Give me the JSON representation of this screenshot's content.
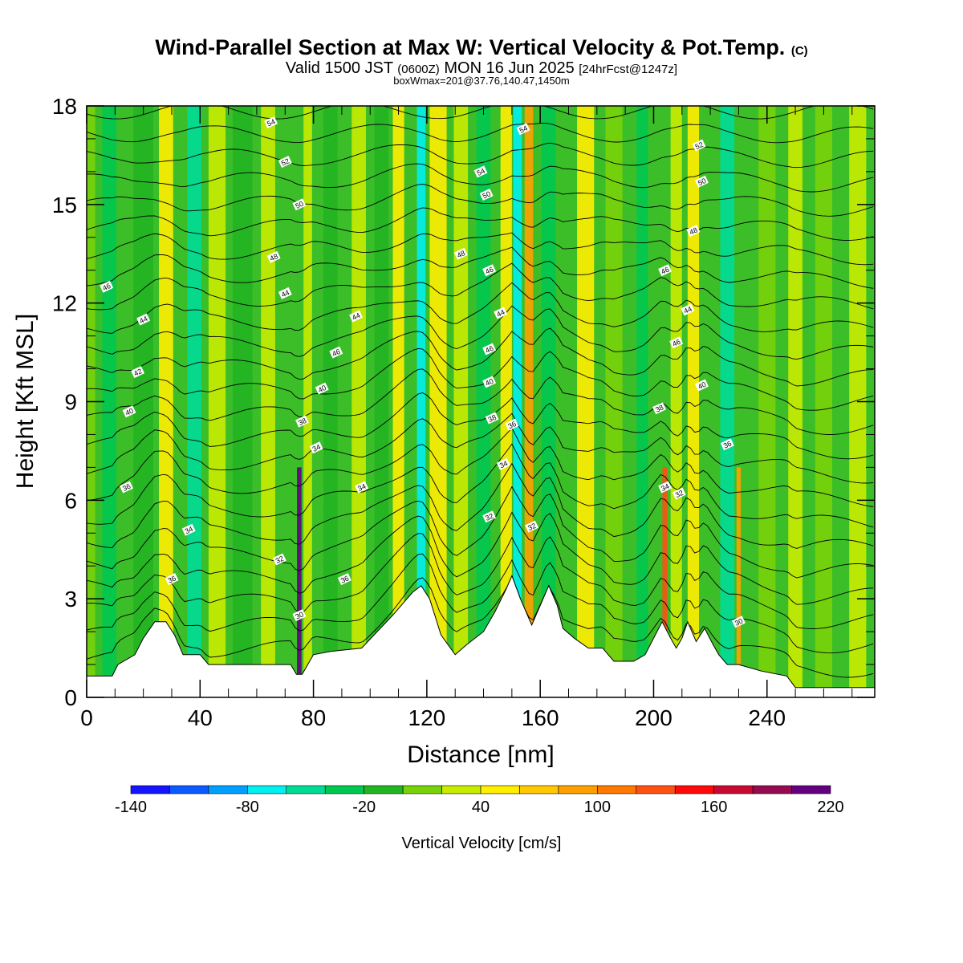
{
  "header": {
    "title": "Wind-Parallel Section at Max W: Vertical Velocity & Pot.Temp.",
    "copyright": "(C)",
    "subtitle_a": "Valid 1500 JST",
    "subtitle_b": "(0600Z)",
    "subtitle_c": "MON 16 Jun 2025",
    "subtitle_d": "[24hrFcst@1247z]",
    "box_info": "boxWmax=201@37.76,140.47,1450m"
  },
  "chart_data": {
    "type": "heatmap",
    "xlabel": "Distance [nm]",
    "ylabel": "Height [Kft MSL]",
    "xlim": [
      0,
      278
    ],
    "ylim": [
      0,
      18
    ],
    "x_ticks": [
      "0",
      "40",
      "80",
      "120",
      "160",
      "200",
      "240"
    ],
    "x_tick_values": [
      0,
      40,
      80,
      120,
      160,
      200,
      240
    ],
    "y_ticks": [
      "0",
      "3",
      "6",
      "9",
      "12",
      "15",
      "18"
    ],
    "y_tick_values": [
      0,
      3,
      6,
      9,
      12,
      15,
      18
    ],
    "colorbar": {
      "label": "Vertical Velocity [cm/s]",
      "tick_labels": [
        "-140",
        "-80",
        "-20",
        "40",
        "100",
        "160",
        "220"
      ],
      "levels": [
        -140,
        -120,
        -100,
        -80,
        -60,
        -40,
        -20,
        0,
        20,
        40,
        60,
        80,
        100,
        120,
        140,
        160,
        180,
        200,
        220
      ],
      "colors": [
        "#1414ff",
        "#0a5aff",
        "#00a0ff",
        "#00f0f0",
        "#00dc96",
        "#00c850",
        "#22b422",
        "#78d20a",
        "#c8eb00",
        "#ffee00",
        "#ffc800",
        "#ffa000",
        "#ff7800",
        "#ff5014",
        "#ff0a0a",
        "#c80a32",
        "#960a50",
        "#64007f"
      ]
    },
    "terrain_kft": [
      [
        0,
        0.65
      ],
      [
        9,
        0.65
      ],
      [
        11,
        1.0
      ],
      [
        17,
        1.3
      ],
      [
        20,
        1.8
      ],
      [
        24,
        2.3
      ],
      [
        28,
        2.3
      ],
      [
        31,
        1.9
      ],
      [
        34,
        1.3
      ],
      [
        40,
        1.3
      ],
      [
        43,
        1.0
      ],
      [
        57,
        1.0
      ],
      [
        72,
        1.0
      ],
      [
        74,
        0.7
      ],
      [
        76,
        0.7
      ],
      [
        78,
        1.0
      ],
      [
        80,
        1.3
      ],
      [
        86,
        1.4
      ],
      [
        97,
        1.5
      ],
      [
        108,
        2.5
      ],
      [
        115,
        3.2
      ],
      [
        118,
        3.4
      ],
      [
        121,
        3.0
      ],
      [
        125,
        1.9
      ],
      [
        130,
        1.3
      ],
      [
        134,
        1.6
      ],
      [
        140,
        2.0
      ],
      [
        144,
        2.6
      ],
      [
        148,
        3.3
      ],
      [
        150,
        3.7
      ],
      [
        153,
        3.0
      ],
      [
        157,
        2.2
      ],
      [
        160,
        2.8
      ],
      [
        163,
        3.4
      ],
      [
        166,
        2.8
      ],
      [
        168,
        2.1
      ],
      [
        172,
        1.8
      ],
      [
        177,
        1.5
      ],
      [
        182,
        1.5
      ],
      [
        186,
        1.1
      ],
      [
        193,
        1.1
      ],
      [
        197,
        1.3
      ],
      [
        200,
        1.8
      ],
      [
        203,
        2.3
      ],
      [
        206,
        1.8
      ],
      [
        208,
        1.5
      ],
      [
        210,
        1.8
      ],
      [
        212,
        2.3
      ],
      [
        215,
        1.7
      ],
      [
        218,
        2.1
      ],
      [
        221,
        1.6
      ],
      [
        223,
        1.3
      ],
      [
        226,
        1.0
      ],
      [
        230,
        1.0
      ],
      [
        238,
        0.8
      ],
      [
        247,
        0.65
      ],
      [
        250,
        0.3
      ],
      [
        256,
        0.3
      ],
      [
        268,
        0.3
      ],
      [
        278,
        0.3
      ]
    ],
    "vertical_velocity_features": [
      {
        "x": 0,
        "w": 6,
        "v": 0
      },
      {
        "x": 8,
        "w": 5,
        "v": -40
      },
      {
        "x": 20,
        "w": 7,
        "v": -20
      },
      {
        "x": 28,
        "w": 5,
        "v": 40
      },
      {
        "x": 38,
        "w": 5,
        "v": -60
      },
      {
        "x": 46,
        "w": 6,
        "v": 20
      },
      {
        "x": 55,
        "w": 7,
        "v": -20
      },
      {
        "x": 64,
        "w": 5,
        "v": 20
      },
      {
        "x": 75,
        "w": 1.6,
        "v": 200
      },
      {
        "x": 78,
        "w": 3,
        "v": 30
      },
      {
        "x": 86,
        "w": 5,
        "v": -20
      },
      {
        "x": 96,
        "w": 5,
        "v": 20
      },
      {
        "x": 104,
        "w": 5,
        "v": -20
      },
      {
        "x": 110,
        "w": 4,
        "v": 40
      },
      {
        "x": 118,
        "w": 3,
        "v": -80
      },
      {
        "x": 124,
        "w": 6,
        "v": 40
      },
      {
        "x": 132,
        "w": 5,
        "v": 20
      },
      {
        "x": 140,
        "w": 5,
        "v": -40
      },
      {
        "x": 148,
        "w": 4,
        "v": 40
      },
      {
        "x": 152,
        "w": 3,
        "v": -80
      },
      {
        "x": 156,
        "w": 3,
        "v": 80
      },
      {
        "x": 163,
        "w": 5,
        "v": -40
      },
      {
        "x": 176,
        "w": 6,
        "v": 40
      },
      {
        "x": 186,
        "w": 6,
        "v": 0
      },
      {
        "x": 196,
        "w": 4,
        "v": -40
      },
      {
        "x": 204,
        "w": 1.8,
        "v": 120
      },
      {
        "x": 208,
        "w": 4,
        "v": 20
      },
      {
        "x": 214,
        "w": 4,
        "v": 40
      },
      {
        "x": 226,
        "w": 5,
        "v": -60
      },
      {
        "x": 230,
        "w": 1.5,
        "v": 80
      },
      {
        "x": 240,
        "w": 6,
        "v": 0
      },
      {
        "x": 250,
        "w": 5,
        "v": 20
      },
      {
        "x": 260,
        "w": 6,
        "v": 0
      },
      {
        "x": 272,
        "w": 6,
        "v": 20
      }
    ],
    "theta_labels": [
      {
        "x": 65,
        "y": 17.5,
        "t": "54"
      },
      {
        "x": 154,
        "y": 17.3,
        "t": "54"
      },
      {
        "x": 70,
        "y": 16.3,
        "t": "52"
      },
      {
        "x": 216,
        "y": 16.8,
        "t": "52"
      },
      {
        "x": 139,
        "y": 16.0,
        "t": "54"
      },
      {
        "x": 217,
        "y": 15.7,
        "t": "50"
      },
      {
        "x": 75,
        "y": 15.0,
        "t": "50"
      },
      {
        "x": 141,
        "y": 15.3,
        "t": "50"
      },
      {
        "x": 214,
        "y": 14.2,
        "t": "48"
      },
      {
        "x": 66,
        "y": 13.4,
        "t": "48"
      },
      {
        "x": 132,
        "y": 13.5,
        "t": "48"
      },
      {
        "x": 142,
        "y": 13.0,
        "t": "46"
      },
      {
        "x": 204,
        "y": 13.0,
        "t": "46"
      },
      {
        "x": 7,
        "y": 12.5,
        "t": "46"
      },
      {
        "x": 70,
        "y": 12.3,
        "t": "44"
      },
      {
        "x": 20,
        "y": 11.5,
        "t": "44"
      },
      {
        "x": 95,
        "y": 11.6,
        "t": "44"
      },
      {
        "x": 146,
        "y": 11.7,
        "t": "44"
      },
      {
        "x": 212,
        "y": 11.8,
        "t": "44"
      },
      {
        "x": 88,
        "y": 10.5,
        "t": "46"
      },
      {
        "x": 142,
        "y": 10.6,
        "t": "46"
      },
      {
        "x": 208,
        "y": 10.8,
        "t": "46"
      },
      {
        "x": 18,
        "y": 9.9,
        "t": "42"
      },
      {
        "x": 83,
        "y": 9.4,
        "t": "40"
      },
      {
        "x": 142,
        "y": 9.6,
        "t": "40"
      },
      {
        "x": 217,
        "y": 9.5,
        "t": "40"
      },
      {
        "x": 15,
        "y": 8.7,
        "t": "40"
      },
      {
        "x": 76,
        "y": 8.4,
        "t": "38"
      },
      {
        "x": 143,
        "y": 8.5,
        "t": "38"
      },
      {
        "x": 150,
        "y": 8.3,
        "t": "36"
      },
      {
        "x": 202,
        "y": 8.8,
        "t": "38"
      },
      {
        "x": 81,
        "y": 7.6,
        "t": "34"
      },
      {
        "x": 226,
        "y": 7.7,
        "t": "36"
      },
      {
        "x": 147,
        "y": 7.1,
        "t": "34"
      },
      {
        "x": 204,
        "y": 6.4,
        "t": "34"
      },
      {
        "x": 14,
        "y": 6.4,
        "t": "36"
      },
      {
        "x": 97,
        "y": 6.4,
        "t": "34"
      },
      {
        "x": 209,
        "y": 6.2,
        "t": "32"
      },
      {
        "x": 142,
        "y": 5.5,
        "t": "32"
      },
      {
        "x": 157,
        "y": 5.2,
        "t": "32"
      },
      {
        "x": 36,
        "y": 5.1,
        "t": "34"
      },
      {
        "x": 68,
        "y": 4.2,
        "t": "32"
      },
      {
        "x": 91,
        "y": 3.6,
        "t": "36"
      },
      {
        "x": 30,
        "y": 3.6,
        "t": "36"
      },
      {
        "x": 75,
        "y": 2.5,
        "t": "30"
      },
      {
        "x": 230,
        "y": 2.3,
        "t": "30"
      }
    ]
  }
}
